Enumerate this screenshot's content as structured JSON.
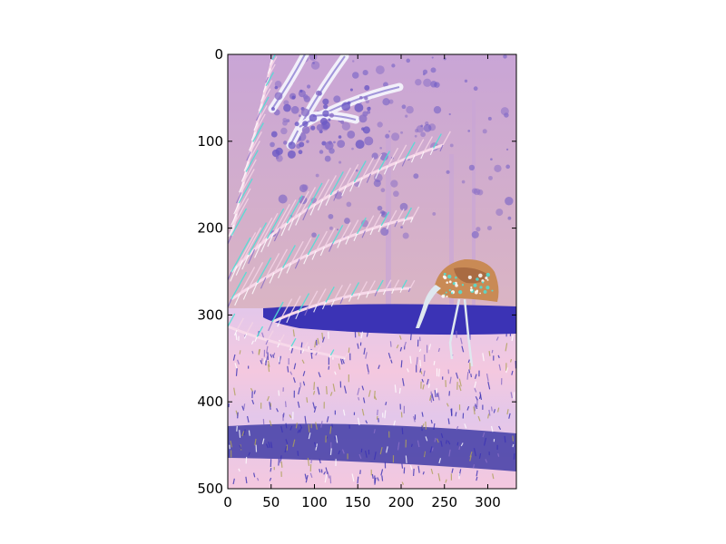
{
  "chart_data": {
    "type": "image",
    "title": "",
    "xlabel": "",
    "ylabel": "",
    "xlim": [
      0,
      333
    ],
    "ylim": [
      500,
      0
    ],
    "y_axis_inverted": true,
    "x_ticks": [
      0,
      50,
      100,
      150,
      200,
      250,
      300
    ],
    "y_ticks": [
      0,
      100,
      200,
      300,
      400,
      500
    ],
    "x_tick_labels": [
      "0",
      "50",
      "100",
      "150",
      "200",
      "250",
      "300"
    ],
    "y_tick_labels": [
      "0",
      "100",
      "200",
      "300",
      "400",
      "500"
    ],
    "grid": false,
    "legend": "none",
    "image_content": {
      "palette": {
        "sky": "#e6c0b7",
        "foliage_light": "#f4c8df",
        "foliage_mid": "#c9a5d6",
        "foliage_dark": "#8a6fc7",
        "branch_violet": "#6b59c4",
        "cyan_highlight": "#4fe0d6",
        "grass_blue": "#3b33b5",
        "grass_dark": "#2a2a9e",
        "grass_light": "#e3c7ea",
        "bird_body": "#c98a55",
        "bird_shadow": "#9b5e3a",
        "bird_legs": "#dfe8ef",
        "olive_grass": "#b0a25a"
      }
    }
  }
}
